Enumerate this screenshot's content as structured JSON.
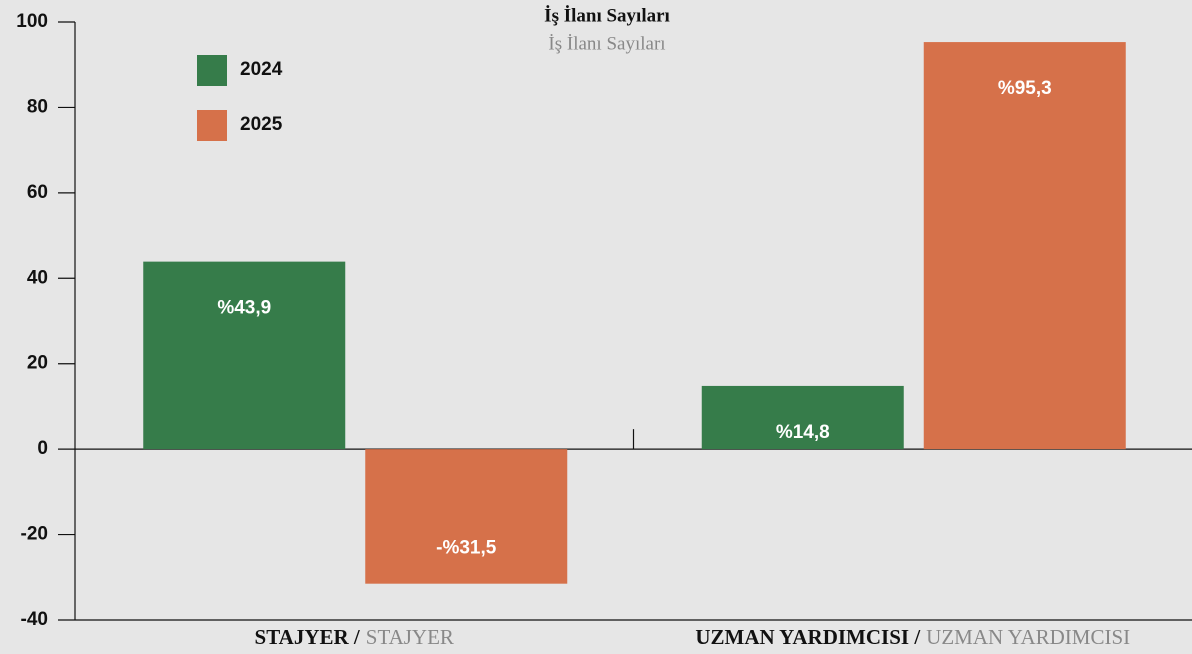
{
  "chart_data": {
    "type": "bar",
    "title": "İş İlanı Sayıları",
    "subtitle": "İş İlanı Sayıları",
    "categories": [
      "STAJYER /",
      "UZMAN YARDIMCISI /"
    ],
    "category_subtitles": [
      "STAJYER",
      "UZMAN YARDIMCISI"
    ],
    "series": [
      {
        "name": "2024",
        "color": "#367c4a",
        "values": [
          43.9,
          14.8
        ],
        "value_labels": [
          "%43,9",
          "%14,8"
        ]
      },
      {
        "name": "2025",
        "color": "#d6714a",
        "values": [
          -31.5,
          95.3
        ],
        "value_labels": [
          "-%31,5",
          "%95,3"
        ]
      }
    ],
    "ylim": [
      -40,
      100
    ],
    "yticks": [
      -40,
      -20,
      0,
      20,
      40,
      60,
      80,
      100
    ],
    "legend": "upper left"
  }
}
